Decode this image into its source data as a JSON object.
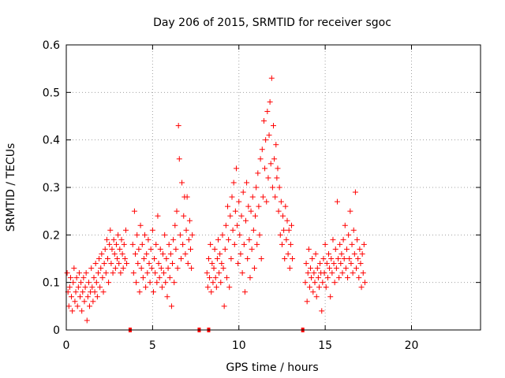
{
  "chart_data": {
    "type": "scatter",
    "title": "Day 206 of 2015, SRMTID for receiver sgoc",
    "xlabel": "GPS time / hours",
    "ylabel": "SRMTID / TECUs",
    "xlim": [
      0,
      24
    ],
    "ylim": [
      0,
      0.6
    ],
    "xticks": [
      0,
      5,
      10,
      15,
      20
    ],
    "xtick_labels": [
      "0",
      "5",
      "10",
      "15",
      "20"
    ],
    "yticks": [
      0,
      0.1,
      0.2,
      0.3,
      0.4,
      0.5,
      0.6
    ],
    "ytick_labels": [
      "0",
      "0.1",
      "0.2",
      "0.3",
      "0.4",
      "0.5",
      "0.6"
    ],
    "grid": true,
    "marker": "+",
    "color": "#ff0000",
    "series": [
      {
        "name": "SRMTID",
        "points": [
          [
            0.05,
            0.12
          ],
          [
            0.1,
            0.08
          ],
          [
            0.15,
            0.05
          ],
          [
            0.2,
            0.09
          ],
          [
            0.25,
            0.11
          ],
          [
            0.3,
            0.07
          ],
          [
            0.35,
            0.04
          ],
          [
            0.4,
            0.1
          ],
          [
            0.45,
            0.13
          ],
          [
            0.5,
            0.06
          ],
          [
            0.55,
            0.08
          ],
          [
            0.6,
            0.11
          ],
          [
            0.65,
            0.05
          ],
          [
            0.7,
            0.09
          ],
          [
            0.75,
            0.12
          ],
          [
            0.8,
            0.07
          ],
          [
            0.85,
            0.1
          ],
          [
            0.9,
            0.04
          ],
          [
            0.95,
            0.08
          ],
          [
            1.0,
            0.11
          ],
          [
            1.05,
            0.06
          ],
          [
            1.1,
            0.09
          ],
          [
            1.15,
            0.12
          ],
          [
            1.2,
            0.02
          ],
          [
            1.25,
            0.07
          ],
          [
            1.3,
            0.1
          ],
          [
            1.35,
            0.05
          ],
          [
            1.4,
            0.08
          ],
          [
            1.45,
            0.13
          ],
          [
            1.5,
            0.09
          ],
          [
            1.55,
            0.06
          ],
          [
            1.6,
            0.11
          ],
          [
            1.65,
            0.08
          ],
          [
            1.7,
            0.14
          ],
          [
            1.75,
            0.1
          ],
          [
            1.8,
            0.07
          ],
          [
            1.85,
            0.12
          ],
          [
            1.9,
            0.15
          ],
          [
            1.95,
            0.09
          ],
          [
            2.0,
            0.13
          ],
          [
            2.05,
            0.16
          ],
          [
            2.1,
            0.11
          ],
          [
            2.15,
            0.08
          ],
          [
            2.2,
            0.14
          ],
          [
            2.25,
            0.17
          ],
          [
            2.3,
            0.12
          ],
          [
            2.35,
            0.19
          ],
          [
            2.4,
            0.15
          ],
          [
            2.45,
            0.1
          ],
          [
            2.5,
            0.18
          ],
          [
            2.55,
            0.21
          ],
          [
            2.6,
            0.14
          ],
          [
            2.65,
            0.17
          ],
          [
            2.7,
            0.12
          ],
          [
            2.75,
            0.19
          ],
          [
            2.8,
            0.16
          ],
          [
            2.85,
            0.13
          ],
          [
            2.9,
            0.18
          ],
          [
            2.95,
            0.15
          ],
          [
            3.0,
            0.2
          ],
          [
            3.05,
            0.14
          ],
          [
            3.1,
            0.17
          ],
          [
            3.15,
            0.12
          ],
          [
            3.2,
            0.19
          ],
          [
            3.25,
            0.16
          ],
          [
            3.3,
            0.13
          ],
          [
            3.35,
            0.18
          ],
          [
            3.4,
            0.15
          ],
          [
            3.45,
            0.21
          ],
          [
            3.5,
            0.14
          ],
          [
            3.85,
            0.18
          ],
          [
            3.9,
            0.12
          ],
          [
            3.95,
            0.25
          ],
          [
            4.0,
            0.16
          ],
          [
            4.05,
            0.1
          ],
          [
            4.1,
            0.2
          ],
          [
            4.15,
            0.14
          ],
          [
            4.2,
            0.17
          ],
          [
            4.25,
            0.08
          ],
          [
            4.3,
            0.22
          ],
          [
            4.35,
            0.13
          ],
          [
            4.4,
            0.18
          ],
          [
            4.45,
            0.11
          ],
          [
            4.5,
            0.15
          ],
          [
            4.55,
            0.2
          ],
          [
            4.6,
            0.09
          ],
          [
            4.65,
            0.16
          ],
          [
            4.7,
            0.12
          ],
          [
            4.75,
            0.19
          ],
          [
            4.8,
            0.14
          ],
          [
            4.85,
            0.1
          ],
          [
            4.9,
            0.17
          ],
          [
            4.95,
            0.13
          ],
          [
            5.0,
            0.21
          ],
          [
            5.05,
            0.08
          ],
          [
            5.1,
            0.15
          ],
          [
            5.15,
            0.12
          ],
          [
            5.2,
            0.18
          ],
          [
            5.25,
            0.1
          ],
          [
            5.3,
            0.24
          ],
          [
            5.35,
            0.14
          ],
          [
            5.4,
            0.11
          ],
          [
            5.45,
            0.17
          ],
          [
            5.5,
            0.13
          ],
          [
            5.55,
            0.09
          ],
          [
            5.6,
            0.16
          ],
          [
            5.65,
            0.12
          ],
          [
            5.7,
            0.2
          ],
          [
            5.75,
            0.1
          ],
          [
            5.8,
            0.15
          ],
          [
            5.85,
            0.07
          ],
          [
            5.9,
            0.13
          ],
          [
            5.95,
            0.18
          ],
          [
            6.0,
            0.11
          ],
          [
            6.05,
            0.16
          ],
          [
            6.1,
            0.05
          ],
          [
            6.15,
            0.14
          ],
          [
            6.2,
            0.19
          ],
          [
            6.25,
            0.1
          ],
          [
            6.3,
            0.22
          ],
          [
            6.35,
            0.17
          ],
          [
            6.4,
            0.25
          ],
          [
            6.45,
            0.13
          ],
          [
            6.5,
            0.43
          ],
          [
            6.55,
            0.36
          ],
          [
            6.6,
            0.2
          ],
          [
            6.65,
            0.15
          ],
          [
            6.7,
            0.31
          ],
          [
            6.75,
            0.18
          ],
          [
            6.8,
            0.24
          ],
          [
            6.85,
            0.28
          ],
          [
            6.9,
            0.16
          ],
          [
            6.95,
            0.21
          ],
          [
            7.0,
            0.28
          ],
          [
            7.05,
            0.14
          ],
          [
            7.1,
            0.19
          ],
          [
            7.15,
            0.23
          ],
          [
            7.2,
            0.17
          ],
          [
            7.25,
            0.13
          ],
          [
            7.3,
            0.2
          ],
          [
            8.15,
            0.12
          ],
          [
            8.2,
            0.09
          ],
          [
            8.25,
            0.15
          ],
          [
            8.3,
            0.11
          ],
          [
            8.35,
            0.18
          ],
          [
            8.4,
            0.08
          ],
          [
            8.45,
            0.14
          ],
          [
            8.5,
            0.1
          ],
          [
            8.55,
            0.13
          ],
          [
            8.6,
            0.17
          ],
          [
            8.65,
            0.11
          ],
          [
            8.7,
            0.09
          ],
          [
            8.75,
            0.15
          ],
          [
            8.8,
            0.19
          ],
          [
            8.85,
            0.12
          ],
          [
            8.9,
            0.16
          ],
          [
            8.95,
            0.1
          ],
          [
            9.0,
            0.14
          ],
          [
            9.05,
            0.2
          ],
          [
            9.1,
            0.13
          ],
          [
            9.15,
            0.05
          ],
          [
            9.2,
            0.17
          ],
          [
            9.25,
            0.22
          ],
          [
            9.3,
            0.11
          ],
          [
            9.35,
            0.26
          ],
          [
            9.4,
            0.19
          ],
          [
            9.45,
            0.09
          ],
          [
            9.5,
            0.24
          ],
          [
            9.55,
            0.15
          ],
          [
            9.6,
            0.28
          ],
          [
            9.65,
            0.21
          ],
          [
            9.7,
            0.31
          ],
          [
            9.75,
            0.18
          ],
          [
            9.8,
            0.25
          ],
          [
            9.85,
            0.34
          ],
          [
            9.9,
            0.22
          ],
          [
            9.95,
            0.14
          ],
          [
            10.0,
            0.27
          ],
          [
            10.05,
            0.2
          ],
          [
            10.1,
            0.16
          ],
          [
            10.15,
            0.24
          ],
          [
            10.2,
            0.12
          ],
          [
            10.25,
            0.29
          ],
          [
            10.3,
            0.18
          ],
          [
            10.35,
            0.08
          ],
          [
            10.4,
            0.23
          ],
          [
            10.45,
            0.31
          ],
          [
            10.5,
            0.15
          ],
          [
            10.55,
            0.26
          ],
          [
            10.6,
            0.19
          ],
          [
            10.65,
            0.11
          ],
          [
            10.7,
            0.25
          ],
          [
            10.75,
            0.17
          ],
          [
            10.8,
            0.28
          ],
          [
            10.85,
            0.21
          ],
          [
            10.9,
            0.13
          ],
          [
            10.95,
            0.24
          ],
          [
            11.0,
            0.3
          ],
          [
            11.05,
            0.18
          ],
          [
            11.1,
            0.33
          ],
          [
            11.15,
            0.26
          ],
          [
            11.2,
            0.2
          ],
          [
            11.25,
            0.36
          ],
          [
            11.3,
            0.15
          ],
          [
            11.35,
            0.38
          ],
          [
            11.4,
            0.28
          ],
          [
            11.45,
            0.44
          ],
          [
            11.5,
            0.34
          ],
          [
            11.55,
            0.4
          ],
          [
            11.6,
            0.27
          ],
          [
            11.65,
            0.46
          ],
          [
            11.7,
            0.32
          ],
          [
            11.75,
            0.41
          ],
          [
            11.8,
            0.48
          ],
          [
            11.85,
            0.35
          ],
          [
            11.9,
            0.53
          ],
          [
            11.95,
            0.3
          ],
          [
            12.0,
            0.43
          ],
          [
            12.05,
            0.36
          ],
          [
            12.1,
            0.28
          ],
          [
            12.15,
            0.39
          ],
          [
            12.2,
            0.32
          ],
          [
            12.25,
            0.34
          ],
          [
            12.3,
            0.25
          ],
          [
            12.35,
            0.3
          ],
          [
            12.4,
            0.2
          ],
          [
            12.45,
            0.27
          ],
          [
            12.5,
            0.18
          ],
          [
            12.55,
            0.24
          ],
          [
            12.6,
            0.21
          ],
          [
            12.65,
            0.15
          ],
          [
            12.7,
            0.26
          ],
          [
            12.75,
            0.19
          ],
          [
            12.8,
            0.23
          ],
          [
            12.85,
            0.16
          ],
          [
            12.9,
            0.21
          ],
          [
            12.95,
            0.13
          ],
          [
            13.0,
            0.18
          ],
          [
            13.05,
            0.22
          ],
          [
            13.1,
            0.15
          ],
          [
            13.85,
            0.1
          ],
          [
            13.9,
            0.14
          ],
          [
            13.95,
            0.06
          ],
          [
            14.0,
            0.12
          ],
          [
            14.05,
            0.17
          ],
          [
            14.1,
            0.09
          ],
          [
            14.15,
            0.13
          ],
          [
            14.2,
            0.11
          ],
          [
            14.25,
            0.15
          ],
          [
            14.3,
            0.08
          ],
          [
            14.35,
            0.12
          ],
          [
            14.4,
            0.1
          ],
          [
            14.45,
            0.16
          ],
          [
            14.5,
            0.07
          ],
          [
            14.55,
            0.13
          ],
          [
            14.6,
            0.11
          ],
          [
            14.65,
            0.09
          ],
          [
            14.7,
            0.14
          ],
          [
            14.75,
            0.12
          ],
          [
            14.8,
            0.04
          ],
          [
            14.85,
            0.1
          ],
          [
            14.9,
            0.15
          ],
          [
            14.95,
            0.12
          ],
          [
            15.0,
            0.18
          ],
          [
            15.05,
            0.09
          ],
          [
            15.1,
            0.14
          ],
          [
            15.15,
            0.11
          ],
          [
            15.2,
            0.16
          ],
          [
            15.25,
            0.13
          ],
          [
            15.3,
            0.07
          ],
          [
            15.35,
            0.15
          ],
          [
            15.4,
            0.12
          ],
          [
            15.45,
            0.19
          ],
          [
            15.5,
            0.14
          ],
          [
            15.55,
            0.1
          ],
          [
            15.6,
            0.17
          ],
          [
            15.65,
            0.13
          ],
          [
            15.7,
            0.27
          ],
          [
            15.75,
            0.15
          ],
          [
            15.8,
            0.11
          ],
          [
            15.85,
            0.18
          ],
          [
            15.9,
            0.14
          ],
          [
            15.95,
            0.16
          ],
          [
            16.0,
            0.12
          ],
          [
            16.05,
            0.19
          ],
          [
            16.1,
            0.15
          ],
          [
            16.15,
            0.22
          ],
          [
            16.2,
            0.13
          ],
          [
            16.25,
            0.17
          ],
          [
            16.3,
            0.11
          ],
          [
            16.35,
            0.2
          ],
          [
            16.4,
            0.15
          ],
          [
            16.45,
            0.25
          ],
          [
            16.5,
            0.14
          ],
          [
            16.55,
            0.18
          ],
          [
            16.6,
            0.12
          ],
          [
            16.65,
            0.21
          ],
          [
            16.7,
            0.16
          ],
          [
            16.75,
            0.29
          ],
          [
            16.8,
            0.13
          ],
          [
            16.85,
            0.19
          ],
          [
            16.9,
            0.15
          ],
          [
            16.95,
            0.11
          ],
          [
            17.0,
            0.17
          ],
          [
            17.05,
            0.14
          ],
          [
            17.1,
            0.09
          ],
          [
            17.15,
            0.16
          ],
          [
            17.2,
            0.12
          ],
          [
            17.25,
            0.18
          ],
          [
            17.3,
            0.1
          ],
          [
            3.7,
            0.0
          ],
          [
            7.7,
            0.0
          ],
          [
            8.25,
            0.0
          ],
          [
            13.7,
            0.0
          ]
        ]
      }
    ]
  }
}
